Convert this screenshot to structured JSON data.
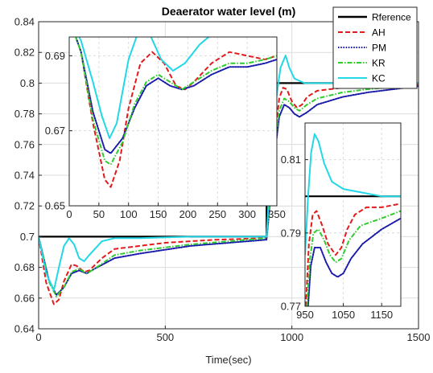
{
  "chart_data": [
    {
      "type": "line",
      "title": "Deaerator water level (m)",
      "xlabel": "Time(sec)",
      "ylabel": "",
      "xlim": [
        0,
        1500
      ],
      "ylim": [
        0.64,
        0.84
      ],
      "xticks": [
        0,
        500,
        1000,
        1500
      ],
      "yticks": [
        0.64,
        0.66,
        0.68,
        0.7,
        0.72,
        0.74,
        0.76,
        0.78,
        0.8,
        0.82,
        0.84
      ],
      "xtick_labels": [
        "0",
        "500",
        "1000",
        "1500"
      ],
      "ytick_labels": [
        "0.64",
        "0.66",
        "0.68",
        "0.7",
        "0.72",
        "0.74",
        "0.76",
        "0.78",
        "0.8",
        "0.82",
        "0.84"
      ],
      "grid": true,
      "legend_position": "top-right",
      "series": [
        {
          "name": "Rference",
          "color": "#000000",
          "style": "solid",
          "points": [
            [
              0,
              0.7
            ],
            [
              900,
              0.7
            ],
            [
              900,
              0.8
            ],
            [
              1500,
              0.8
            ]
          ]
        },
        {
          "name": "AH",
          "color": "#e31a1c",
          "style": "dashed",
          "points": [
            [
              0,
              0.7
            ],
            [
              30,
              0.67
            ],
            [
              60,
              0.656
            ],
            [
              80,
              0.659
            ],
            [
              100,
              0.671
            ],
            [
              130,
              0.682
            ],
            [
              150,
              0.681
            ],
            [
              180,
              0.677
            ],
            [
              200,
              0.678
            ],
            [
              250,
              0.686
            ],
            [
              300,
              0.692
            ],
            [
              400,
              0.694
            ],
            [
              500,
              0.696
            ],
            [
              700,
              0.698
            ],
            [
              900,
              0.699
            ],
            [
              930,
              0.76
            ],
            [
              950,
              0.79
            ],
            [
              965,
              0.797
            ],
            [
              980,
              0.796
            ],
            [
              1000,
              0.788
            ],
            [
              1020,
              0.784
            ],
            [
              1040,
              0.786
            ],
            [
              1060,
              0.791
            ],
            [
              1100,
              0.795
            ],
            [
              1200,
              0.797
            ],
            [
              1300,
              0.798
            ],
            [
              1500,
              0.799
            ]
          ]
        },
        {
          "name": "PM",
          "color": "#1a1aaa",
          "style": "dotted",
          "points": [
            [
              0,
              0.7
            ],
            [
              40,
              0.672
            ],
            [
              70,
              0.662
            ],
            [
              100,
              0.667
            ],
            [
              130,
              0.676
            ],
            [
              160,
              0.678
            ],
            [
              190,
              0.676
            ],
            [
              220,
              0.679
            ],
            [
              300,
              0.686
            ],
            [
              400,
              0.689
            ],
            [
              600,
              0.694
            ],
            [
              900,
              0.698
            ],
            [
              930,
              0.75
            ],
            [
              950,
              0.778
            ],
            [
              970,
              0.786
            ],
            [
              990,
              0.784
            ],
            [
              1010,
              0.78
            ],
            [
              1030,
              0.778
            ],
            [
              1060,
              0.781
            ],
            [
              1100,
              0.786
            ],
            [
              1200,
              0.791
            ],
            [
              1300,
              0.794
            ],
            [
              1500,
              0.798
            ]
          ]
        },
        {
          "name": "KR",
          "color": "#2ecc2e",
          "style": "dashdot",
          "points": [
            [
              0,
              0.7
            ],
            [
              40,
              0.671
            ],
            [
              70,
              0.661
            ],
            [
              100,
              0.667
            ],
            [
              130,
              0.677
            ],
            [
              160,
              0.679
            ],
            [
              190,
              0.676
            ],
            [
              220,
              0.679
            ],
            [
              300,
              0.688
            ],
            [
              400,
              0.691
            ],
            [
              600,
              0.695
            ],
            [
              900,
              0.699
            ],
            [
              930,
              0.755
            ],
            [
              950,
              0.782
            ],
            [
              970,
              0.79
            ],
            [
              990,
              0.788
            ],
            [
              1010,
              0.784
            ],
            [
              1030,
              0.782
            ],
            [
              1060,
              0.786
            ],
            [
              1100,
              0.79
            ],
            [
              1200,
              0.794
            ],
            [
              1300,
              0.796
            ],
            [
              1500,
              0.799
            ]
          ]
        },
        {
          "name": "KC",
          "color": "#22d8e6",
          "style": "solid",
          "points": [
            [
              0,
              0.7
            ],
            [
              30,
              0.676
            ],
            [
              60,
              0.665
            ],
            [
              80,
              0.68
            ],
            [
              100,
              0.694
            ],
            [
              120,
              0.699
            ],
            [
              140,
              0.695
            ],
            [
              160,
              0.686
            ],
            [
              180,
              0.684
            ],
            [
              200,
              0.688
            ],
            [
              250,
              0.697
            ],
            [
              300,
              0.699
            ],
            [
              400,
              0.699
            ],
            [
              600,
              0.7
            ],
            [
              900,
              0.7
            ],
            [
              930,
              0.78
            ],
            [
              955,
              0.81
            ],
            [
              975,
              0.818
            ],
            [
              990,
              0.81
            ],
            [
              1010,
              0.803
            ],
            [
              1050,
              0.8
            ],
            [
              1100,
              0.8
            ],
            [
              1500,
              0.8
            ]
          ]
        }
      ]
    },
    {
      "type": "line",
      "title": "",
      "inset": "upper-left",
      "xlim": [
        0,
        350
      ],
      "ylim": [
        0.65,
        0.695
      ],
      "xticks": [
        0,
        50,
        100,
        150,
        200,
        250,
        300,
        350
      ],
      "yticks": [
        0.65,
        0.67,
        0.69
      ],
      "xtick_labels": [
        "0",
        "50",
        "100",
        "150",
        "200",
        "250",
        "300",
        "350"
      ],
      "ytick_labels": [
        "0.65",
        "0.67",
        "0.69"
      ],
      "grid": true,
      "series": [
        {
          "name": "Rference",
          "color": "#000000",
          "style": "solid",
          "points": [
            [
              0,
              0.7
            ],
            [
              350,
              0.7
            ]
          ]
        },
        {
          "name": "AH",
          "color": "#e31a1c",
          "style": "dashed",
          "points": [
            [
              0,
              0.7
            ],
            [
              20,
              0.691
            ],
            [
              40,
              0.672
            ],
            [
              60,
              0.657
            ],
            [
              70,
              0.655
            ],
            [
              85,
              0.662
            ],
            [
              100,
              0.676
            ],
            [
              120,
              0.688
            ],
            [
              140,
              0.691
            ],
            [
              160,
              0.688
            ],
            [
              180,
              0.682
            ],
            [
              195,
              0.681
            ],
            [
              210,
              0.683
            ],
            [
              240,
              0.688
            ],
            [
              270,
              0.691
            ],
            [
              300,
              0.69
            ],
            [
              330,
              0.689
            ],
            [
              350,
              0.69
            ]
          ]
        },
        {
          "name": "PM",
          "color": "#1a1aaa",
          "style": "dotted",
          "points": [
            [
              0,
              0.7
            ],
            [
              20,
              0.691
            ],
            [
              40,
              0.675
            ],
            [
              60,
              0.665
            ],
            [
              70,
              0.664
            ],
            [
              90,
              0.668
            ],
            [
              110,
              0.676
            ],
            [
              130,
              0.682
            ],
            [
              150,
              0.684
            ],
            [
              170,
              0.682
            ],
            [
              190,
              0.681
            ],
            [
              210,
              0.682
            ],
            [
              240,
              0.685
            ],
            [
              270,
              0.687
            ],
            [
              300,
              0.687
            ],
            [
              330,
              0.688
            ],
            [
              350,
              0.689
            ]
          ]
        },
        {
          "name": "KR",
          "color": "#2ecc2e",
          "style": "dashdot",
          "points": [
            [
              0,
              0.7
            ],
            [
              20,
              0.691
            ],
            [
              40,
              0.673
            ],
            [
              60,
              0.662
            ],
            [
              70,
              0.661
            ],
            [
              90,
              0.667
            ],
            [
              110,
              0.677
            ],
            [
              130,
              0.683
            ],
            [
              150,
              0.685
            ],
            [
              170,
              0.683
            ],
            [
              190,
              0.681
            ],
            [
              210,
              0.683
            ],
            [
              240,
              0.686
            ],
            [
              270,
              0.688
            ],
            [
              300,
              0.688
            ],
            [
              330,
              0.689
            ],
            [
              350,
              0.69
            ]
          ]
        },
        {
          "name": "KC",
          "color": "#22d8e6",
          "style": "solid",
          "points": [
            [
              0,
              0.7
            ],
            [
              20,
              0.694
            ],
            [
              40,
              0.683
            ],
            [
              55,
              0.674
            ],
            [
              68,
              0.668
            ],
            [
              80,
              0.672
            ],
            [
              100,
              0.689
            ],
            [
              120,
              0.698
            ],
            [
              135,
              0.696
            ],
            [
              155,
              0.689
            ],
            [
              175,
              0.686
            ],
            [
              195,
              0.688
            ],
            [
              220,
              0.693
            ],
            [
              250,
              0.697
            ],
            [
              280,
              0.697
            ],
            [
              310,
              0.696
            ],
            [
              330,
              0.696
            ],
            [
              350,
              0.696
            ]
          ]
        }
      ]
    },
    {
      "type": "line",
      "title": "",
      "inset": "lower-right",
      "xlim": [
        950,
        1200
      ],
      "ylim": [
        0.77,
        0.82
      ],
      "xticks": [
        950,
        1050,
        1150
      ],
      "yticks": [
        0.77,
        0.79,
        0.81
      ],
      "xtick_labels": [
        "950",
        "1050",
        "1150"
      ],
      "ytick_labels": [
        "0.77",
        "0.79",
        "0.81"
      ],
      "grid": true,
      "series": [
        {
          "name": "Rference",
          "color": "#000000",
          "style": "solid",
          "points": [
            [
              950,
              0.8
            ],
            [
              1200,
              0.8
            ]
          ]
        },
        {
          "name": "AH",
          "color": "#e31a1c",
          "style": "dashed",
          "points": [
            [
              952,
              0.77
            ],
            [
              960,
              0.787
            ],
            [
              970,
              0.795
            ],
            [
              980,
              0.796
            ],
            [
              995,
              0.792
            ],
            [
              1010,
              0.787
            ],
            [
              1030,
              0.784
            ],
            [
              1045,
              0.786
            ],
            [
              1060,
              0.791
            ],
            [
              1080,
              0.795
            ],
            [
              1110,
              0.797
            ],
            [
              1150,
              0.797
            ],
            [
              1200,
              0.798
            ]
          ]
        },
        {
          "name": "PM",
          "color": "#1a1aaa",
          "style": "dotted",
          "points": [
            [
              958,
              0.77
            ],
            [
              965,
              0.781
            ],
            [
              975,
              0.786
            ],
            [
              990,
              0.786
            ],
            [
              1005,
              0.782
            ],
            [
              1020,
              0.779
            ],
            [
              1035,
              0.778
            ],
            [
              1050,
              0.779
            ],
            [
              1070,
              0.783
            ],
            [
              1100,
              0.787
            ],
            [
              1150,
              0.791
            ],
            [
              1200,
              0.794
            ]
          ]
        },
        {
          "name": "KR",
          "color": "#2ecc2e",
          "style": "dashdot",
          "points": [
            [
              955,
              0.77
            ],
            [
              963,
              0.783
            ],
            [
              972,
              0.79
            ],
            [
              985,
              0.791
            ],
            [
              1000,
              0.788
            ],
            [
              1015,
              0.784
            ],
            [
              1030,
              0.782
            ],
            [
              1045,
              0.783
            ],
            [
              1065,
              0.788
            ],
            [
              1095,
              0.792
            ],
            [
              1150,
              0.794
            ],
            [
              1200,
              0.796
            ]
          ]
        },
        {
          "name": "KC",
          "color": "#22d8e6",
          "style": "solid",
          "points": [
            [
              950,
              0.784
            ],
            [
              958,
              0.8
            ],
            [
              966,
              0.812
            ],
            [
              975,
              0.817
            ],
            [
              985,
              0.815
            ],
            [
              1000,
              0.809
            ],
            [
              1020,
              0.804
            ],
            [
              1050,
              0.802
            ],
            [
              1100,
              0.801
            ],
            [
              1150,
              0.8
            ],
            [
              1200,
              0.8
            ]
          ]
        }
      ]
    }
  ]
}
